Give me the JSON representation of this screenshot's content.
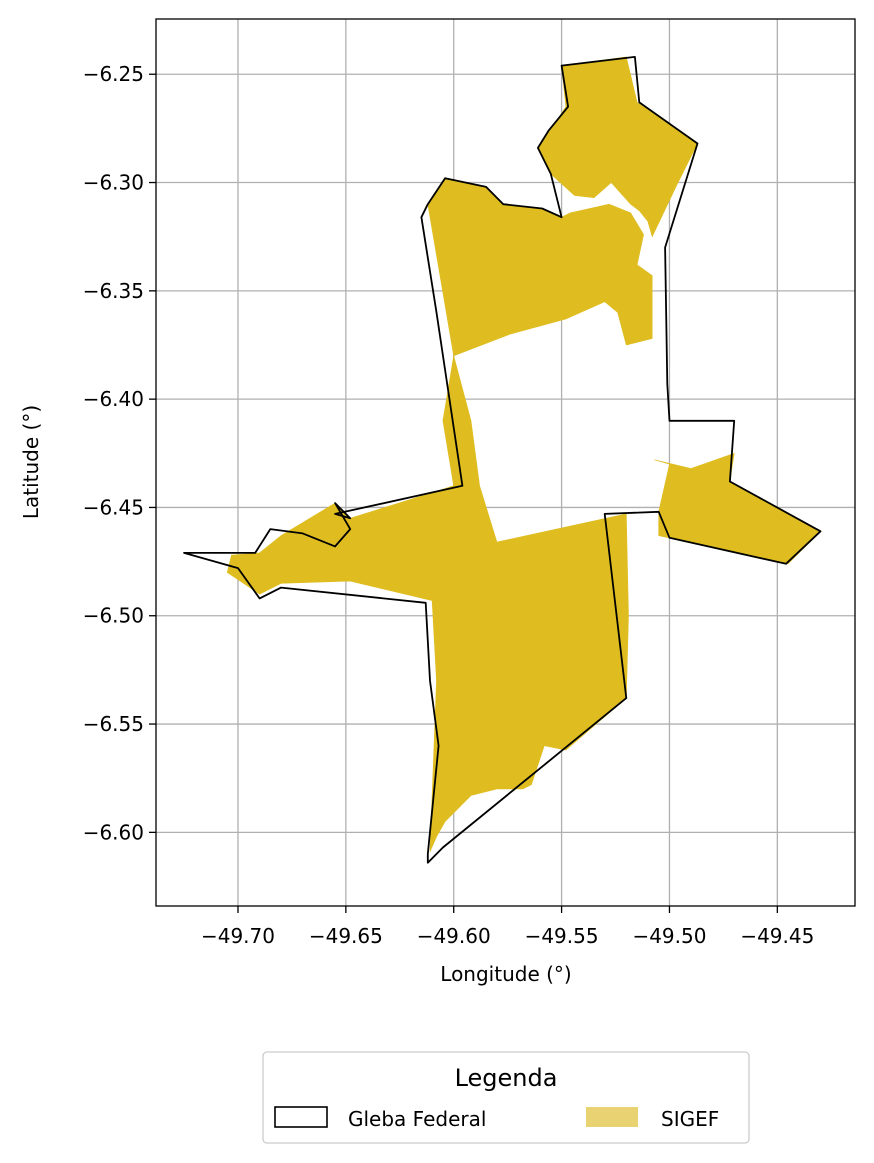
{
  "chart_data": {
    "type": "map",
    "xlabel": "Longitude (°)",
    "ylabel": "Latitude (°)",
    "xlim": [
      -49.738,
      -49.414
    ],
    "ylim": [
      -6.634,
      -6.2245
    ],
    "grid": true,
    "x_ticks": [
      {
        "value": -49.7,
        "label": "−49.70"
      },
      {
        "value": -49.65,
        "label": "−49.65"
      },
      {
        "value": -49.6,
        "label": "−49.60"
      },
      {
        "value": -49.55,
        "label": "−49.55"
      },
      {
        "value": -49.5,
        "label": "−49.50"
      },
      {
        "value": -49.45,
        "label": "−49.45"
      }
    ],
    "y_ticks": [
      {
        "value": -6.25,
        "label": "−6.25"
      },
      {
        "value": -6.3,
        "label": "−6.30"
      },
      {
        "value": -6.35,
        "label": "−6.35"
      },
      {
        "value": -6.4,
        "label": "−6.40"
      },
      {
        "value": -6.45,
        "label": "−6.45"
      },
      {
        "value": -6.5,
        "label": "−6.50"
      },
      {
        "value": -6.55,
        "label": "−6.55"
      },
      {
        "value": -6.6,
        "label": "−6.60"
      }
    ],
    "layers": [
      {
        "name": "SIGEF",
        "color": "#dfbd20",
        "polygons": [
          [
            [
              -49.6,
              -6.38
            ],
            [
              -49.612,
              -6.31
            ],
            [
              -49.604,
              -6.298
            ],
            [
              -49.585,
              -6.302
            ],
            [
              -49.577,
              -6.31
            ],
            [
              -49.559,
              -6.312
            ],
            [
              -49.55,
              -6.316
            ],
            [
              -49.546,
              -6.314
            ],
            [
              -49.528,
              -6.31
            ],
            [
              -49.518,
              -6.314
            ],
            [
              -49.512,
              -6.324
            ],
            [
              -49.515,
              -6.338
            ],
            [
              -49.508,
              -6.343
            ],
            [
              -49.508,
              -6.372
            ],
            [
              -49.52,
              -6.375
            ],
            [
              -49.524,
              -6.36
            ],
            [
              -49.53,
              -6.355
            ],
            [
              -49.548,
              -6.363
            ],
            [
              -49.574,
              -6.37
            ]
          ],
          [
            [
              -49.527,
              -6.3
            ],
            [
              -49.535,
              -6.307
            ],
            [
              -49.544,
              -6.306
            ],
            [
              -49.555,
              -6.296
            ],
            [
              -49.561,
              -6.284
            ],
            [
              -49.554,
              -6.274
            ],
            [
              -49.548,
              -6.265
            ],
            [
              -49.55,
              -6.246
            ],
            [
              -49.52,
              -6.242
            ],
            [
              -49.515,
              -6.263
            ],
            [
              -49.487,
              -6.282
            ],
            [
              -49.497,
              -6.302
            ],
            [
              -49.508,
              -6.325
            ],
            [
              -49.51,
              -6.318
            ],
            [
              -49.514,
              -6.313
            ],
            [
              -49.518,
              -6.31
            ]
          ],
          [
            [
              -49.6,
              -6.38
            ],
            [
              -49.592,
              -6.41
            ],
            [
              -49.588,
              -6.44
            ],
            [
              -49.58,
              -6.466
            ],
            [
              -49.52,
              -6.453
            ],
            [
              -49.519,
              -6.5
            ],
            [
              -49.52,
              -6.538
            ],
            [
              -49.548,
              -6.562
            ],
            [
              -49.558,
              -6.56
            ],
            [
              -49.564,
              -6.578
            ],
            [
              -49.568,
              -6.58
            ],
            [
              -49.58,
              -6.58
            ],
            [
              -49.592,
              -6.583
            ],
            [
              -49.604,
              -6.595
            ],
            [
              -49.608,
              -6.602
            ],
            [
              -49.611,
              -6.609
            ],
            [
              -49.608,
              -6.53
            ],
            [
              -49.61,
              -6.493
            ],
            [
              -49.648,
              -6.484
            ],
            [
              -49.68,
              -6.485
            ],
            [
              -49.69,
              -6.49
            ],
            [
              -49.705,
              -6.48
            ],
            [
              -49.703,
              -6.472
            ],
            [
              -49.69,
              -6.471
            ],
            [
              -49.68,
              -6.463
            ],
            [
              -49.655,
              -6.448
            ],
            [
              -49.648,
              -6.455
            ],
            [
              -49.6,
              -6.44
            ],
            [
              -49.605,
              -6.41
            ]
          ],
          [
            [
              -49.507,
              -6.428
            ],
            [
              -49.5,
              -6.43
            ],
            [
              -49.505,
              -6.452
            ],
            [
              -49.505,
              -6.463
            ],
            [
              -49.445,
              -6.476
            ],
            [
              -49.43,
              -6.461
            ],
            [
              -49.472,
              -6.438
            ],
            [
              -49.47,
              -6.425
            ],
            [
              -49.49,
              -6.432
            ]
          ]
        ]
      },
      {
        "name": "Gleba Federal",
        "color": "#000000",
        "polygons": [
          [
            [
              -49.612,
              -6.614
            ],
            [
              -49.605,
              -6.607
            ],
            [
              -49.52,
              -6.538
            ],
            [
              -49.53,
              -6.453
            ],
            [
              -49.505,
              -6.452
            ],
            [
              -49.5,
              -6.464
            ],
            [
              -49.446,
              -6.476
            ],
            [
              -49.43,
              -6.461
            ],
            [
              -49.472,
              -6.438
            ],
            [
              -49.47,
              -6.41
            ],
            [
              -49.5,
              -6.41
            ],
            [
              -49.501,
              -6.393
            ],
            [
              -49.502,
              -6.33
            ],
            [
              -49.487,
              -6.282
            ],
            [
              -49.514,
              -6.263
            ],
            [
              -49.516,
              -6.242
            ],
            [
              -49.55,
              -6.246
            ],
            [
              -49.547,
              -6.265
            ],
            [
              -49.556,
              -6.276
            ],
            [
              -49.561,
              -6.284
            ],
            [
              -49.555,
              -6.296
            ],
            [
              -49.55,
              -6.316
            ],
            [
              -49.559,
              -6.312
            ],
            [
              -49.577,
              -6.31
            ],
            [
              -49.585,
              -6.302
            ],
            [
              -49.604,
              -6.298
            ],
            [
              -49.612,
              -6.31
            ],
            [
              -49.615,
              -6.316
            ],
            [
              -49.608,
              -6.36
            ],
            [
              -49.596,
              -6.44
            ],
            [
              -49.655,
              -6.453
            ],
            [
              -49.648,
              -6.455
            ],
            [
              -49.655,
              -6.448
            ],
            [
              -49.648,
              -6.46
            ],
            [
              -49.655,
              -6.468
            ],
            [
              -49.67,
              -6.462
            ],
            [
              -49.685,
              -6.46
            ],
            [
              -49.692,
              -6.471
            ],
            [
              -49.725,
              -6.471
            ],
            [
              -49.7,
              -6.478
            ],
            [
              -49.69,
              -6.492
            ],
            [
              -49.68,
              -6.487
            ],
            [
              -49.613,
              -6.494
            ],
            [
              -49.611,
              -6.53
            ],
            [
              -49.607,
              -6.56
            ],
            [
              -49.612,
              -6.61
            ]
          ]
        ]
      }
    ],
    "legend": {
      "title": "Legenda",
      "placement": "bottom-center",
      "entries": [
        {
          "label": "Gleba Federal",
          "style": "outline",
          "color": "#000000"
        },
        {
          "label": "SIGEF",
          "style": "fill",
          "color": "#e8d272"
        }
      ]
    }
  }
}
